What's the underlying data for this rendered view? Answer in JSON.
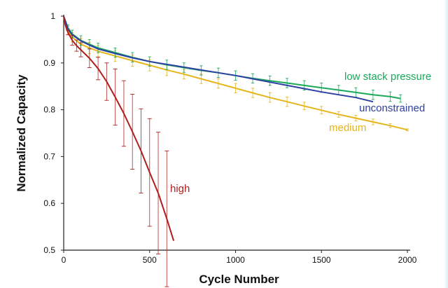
{
  "chart_data": {
    "type": "line",
    "title": "",
    "xlabel": "Cycle Number",
    "ylabel": "Normalized Capacity",
    "xlim": [
      0,
      2000
    ],
    "ylim": [
      0.5,
      1.0
    ],
    "x_ticks": [
      0,
      500,
      1000,
      1500,
      2000
    ],
    "y_ticks": [
      0.5,
      0.6,
      0.7,
      0.8,
      0.9,
      1
    ],
    "x_tick_labels": [
      "0",
      "500",
      "1000",
      "1500",
      "2000"
    ],
    "y_tick_labels": [
      "0.5",
      "0.6",
      "0.7",
      "0.8",
      "0.9",
      "1"
    ],
    "grid": false,
    "legend": "inline labels near line ends",
    "series": [
      {
        "name": "low stack pressure",
        "color": "#1aa85a",
        "x": [
          0,
          25,
          50,
          100,
          150,
          200,
          300,
          400,
          500,
          600,
          700,
          800,
          900,
          1000,
          1100,
          1200,
          1300,
          1400,
          1500,
          1600,
          1700,
          1800,
          1900,
          1960
        ],
        "y": [
          1.0,
          0.975,
          0.962,
          0.948,
          0.94,
          0.932,
          0.922,
          0.912,
          0.903,
          0.896,
          0.89,
          0.884,
          0.879,
          0.873,
          0.867,
          0.862,
          0.857,
          0.852,
          0.847,
          0.842,
          0.837,
          0.832,
          0.828,
          0.824
        ],
        "error": [
          0,
          0.006,
          0.008,
          0.01,
          0.01,
          0.01,
          0.01,
          0.01,
          0.01,
          0.01,
          0.01,
          0.01,
          0.01,
          0.01,
          0.01,
          0.01,
          0.01,
          0.01,
          0.01,
          0.01,
          0.01,
          0.01,
          0.01,
          0.008
        ]
      },
      {
        "name": "unconstrained",
        "color": "#2e3fa3",
        "x": [
          0,
          25,
          50,
          100,
          150,
          200,
          300,
          400,
          500,
          600,
          700,
          800,
          900,
          1000,
          1100,
          1200,
          1300,
          1400,
          1500,
          1600,
          1700,
          1800
        ],
        "y": [
          1.0,
          0.972,
          0.96,
          0.947,
          0.938,
          0.93,
          0.92,
          0.911,
          0.903,
          0.897,
          0.891,
          0.885,
          0.879,
          0.873,
          0.866,
          0.859,
          0.852,
          0.845,
          0.838,
          0.832,
          0.826,
          0.817
        ]
      },
      {
        "name": "medium",
        "color": "#e6b51a",
        "x": [
          0,
          25,
          50,
          100,
          150,
          200,
          300,
          400,
          500,
          600,
          700,
          800,
          900,
          1000,
          1100,
          1200,
          1300,
          1400,
          1500,
          1600,
          1700,
          1800,
          1900,
          2000
        ],
        "y": [
          1.0,
          0.97,
          0.955,
          0.94,
          0.932,
          0.925,
          0.915,
          0.905,
          0.895,
          0.885,
          0.876,
          0.866,
          0.856,
          0.846,
          0.836,
          0.826,
          0.817,
          0.808,
          0.799,
          0.79,
          0.782,
          0.774,
          0.766,
          0.757
        ],
        "error": [
          0,
          0.008,
          0.01,
          0.012,
          0.012,
          0.012,
          0.012,
          0.012,
          0.012,
          0.012,
          0.01,
          0.01,
          0.01,
          0.01,
          0.01,
          0.01,
          0.01,
          0.008,
          0.008,
          0.006,
          0.006,
          0.006,
          0.004,
          0.002
        ]
      },
      {
        "name": "high",
        "color": "#b01e1e",
        "x": [
          0,
          10,
          25,
          50,
          75,
          100,
          150,
          200,
          250,
          300,
          350,
          400,
          450,
          500,
          550,
          600,
          640
        ],
        "y": [
          1.0,
          0.98,
          0.965,
          0.948,
          0.937,
          0.928,
          0.91,
          0.888,
          0.86,
          0.827,
          0.792,
          0.753,
          0.712,
          0.666,
          0.622,
          0.567,
          0.52
        ],
        "error": [
          0,
          0,
          0.005,
          0.01,
          0.012,
          0.015,
          0.02,
          0.024,
          0.04,
          0.06,
          0.07,
          0.08,
          0.09,
          0.115,
          0.13,
          0.145,
          0
        ]
      }
    ]
  }
}
